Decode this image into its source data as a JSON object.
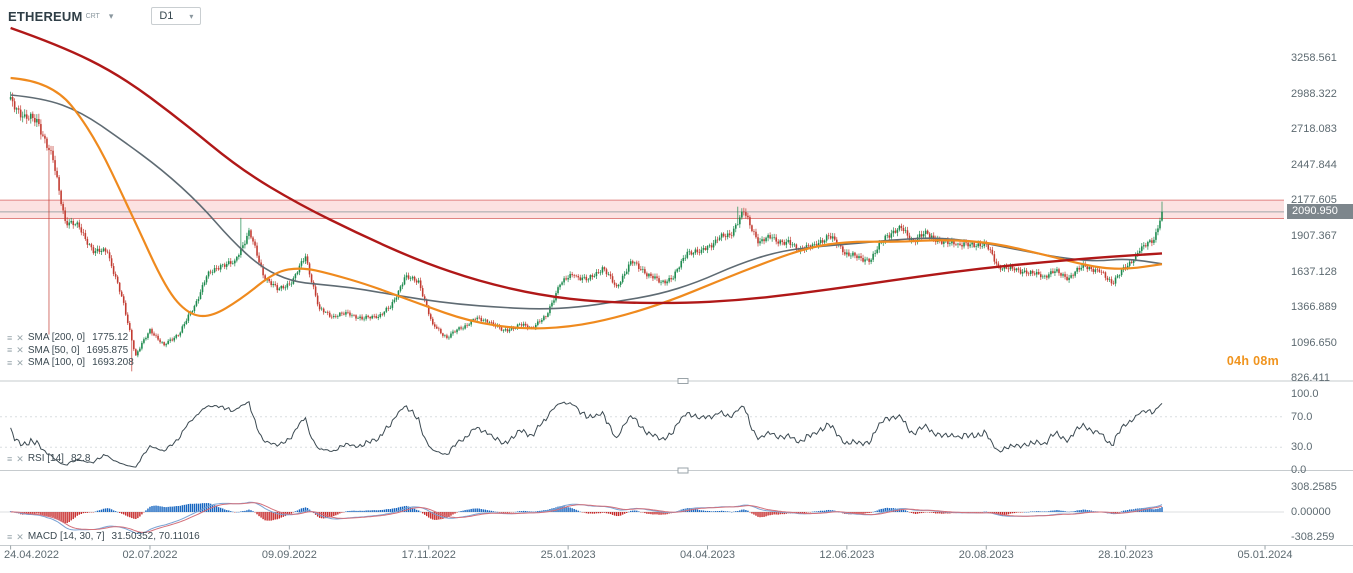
{
  "header": {
    "symbol": "ETHEREUM",
    "symbol_code": "CRT",
    "timeframe": "D1"
  },
  "current_price_label": "2090.950",
  "countdown": "04h 08m",
  "legends": {
    "sma200": {
      "label": "SMA [200, 0]",
      "value": "1775.12"
    },
    "sma50": {
      "label": "SMA [50, 0]",
      "value": "1695.875"
    },
    "sma100": {
      "label": "SMA [100, 0]",
      "value": "1693.208"
    },
    "rsi": {
      "label": "RSI [14]",
      "value": "82.8"
    },
    "macd": {
      "label": "MACD [14, 30, 7]",
      "value": "31.50352,  70.11016"
    }
  },
  "chart_data": {
    "type": "candlestick",
    "title": "ETHEREUM D1",
    "price_axis": {
      "labels": [
        "3258.561",
        "2988.322",
        "2718.083",
        "2447.844",
        "2177.605",
        "1907.367",
        "1637.128",
        "1366.889",
        "1096.650",
        "826.411"
      ],
      "top_price": 3258.561,
      "price_step": 270.239
    },
    "time_axis": [
      {
        "label": "24.04.2022",
        "day": 0
      },
      {
        "label": "02.07.2022",
        "day": 69
      },
      {
        "label": "09.09.2022",
        "day": 138
      },
      {
        "label": "17.11.2022",
        "day": 207
      },
      {
        "label": "25.01.2023",
        "day": 276
      },
      {
        "label": "04.04.2023",
        "day": 345
      },
      {
        "label": "12.06.2023",
        "day": 414
      },
      {
        "label": "20.08.2023",
        "day": 483
      },
      {
        "label": "28.10.2023",
        "day": 552
      },
      {
        "label": "05.01.2024",
        "day": 621
      }
    ],
    "current_price": 2090.95,
    "resistance_zone": {
      "price_from": 2040,
      "price_to": 2180
    },
    "series": {
      "start_date": "24.04.2022",
      "interval_days": 7,
      "first_open": 2930,
      "weekly_closes": [
        2830,
        2780,
        2520,
        2025,
        1975,
        1790,
        1805,
        1440,
        995,
        1195,
        1070,
        1165,
        1350,
        1600,
        1690,
        1700,
        1935,
        1620,
        1500,
        1560,
        1760,
        1335,
        1295,
        1320,
        1275,
        1305,
        1365,
        1590,
        1565,
        1220,
        1135,
        1215,
        1280,
        1265,
        1185,
        1220,
        1215,
        1290,
        1550,
        1628,
        1570,
        1665,
        1515,
        1700,
        1640,
        1565,
        1590,
        1795,
        1780,
        1865,
        1920,
        2090,
        1875,
        1905,
        1845,
        1805,
        1830,
        1905,
        1810,
        1745,
        1730,
        1905,
        1955,
        1870,
        1935,
        1855,
        1865,
        1835,
        1845,
        1675,
        1650,
        1635,
        1615,
        1635,
        1590,
        1680,
        1635,
        1560,
        1670,
        1805,
        1890,
        2091
      ],
      "last_week_days": 4,
      "last_close": 2090.95
    },
    "overlays": [
      {
        "name": "SMA 200",
        "color": "#b01818",
        "points": [
          [
            0,
            3486
          ],
          [
            24,
            3357
          ],
          [
            54,
            3130
          ],
          [
            84,
            2789
          ],
          [
            114,
            2411
          ],
          [
            143,
            2146
          ],
          [
            173,
            1919
          ],
          [
            203,
            1714
          ],
          [
            232,
            1563
          ],
          [
            262,
            1457
          ],
          [
            292,
            1404
          ],
          [
            331,
            1396
          ],
          [
            361,
            1419
          ],
          [
            391,
            1472
          ],
          [
            420,
            1533
          ],
          [
            450,
            1601
          ],
          [
            480,
            1661
          ],
          [
            510,
            1707
          ],
          [
            539,
            1745
          ],
          [
            570,
            1775
          ]
        ]
      },
      {
        "name": "SMA 100",
        "color": "#ef8a1e",
        "points": [
          [
            0,
            3107
          ],
          [
            20,
            3085
          ],
          [
            40,
            2713
          ],
          [
            60,
            2070
          ],
          [
            77,
            1502
          ],
          [
            88,
            1313
          ],
          [
            99,
            1290
          ],
          [
            114,
            1427
          ],
          [
            131,
            1638
          ],
          [
            144,
            1669
          ],
          [
            158,
            1623
          ],
          [
            178,
            1532
          ],
          [
            203,
            1389
          ],
          [
            227,
            1260
          ],
          [
            252,
            1200
          ],
          [
            277,
            1215
          ],
          [
            301,
            1291
          ],
          [
            326,
            1412
          ],
          [
            350,
            1563
          ],
          [
            375,
            1714
          ],
          [
            395,
            1820
          ],
          [
            414,
            1866
          ],
          [
            439,
            1862
          ],
          [
            464,
            1881
          ],
          [
            488,
            1851
          ],
          [
            513,
            1760
          ],
          [
            537,
            1669
          ],
          [
            552,
            1654
          ],
          [
            570,
            1693
          ]
        ]
      },
      {
        "name": "SMA 50",
        "color": "#5f6b73",
        "points": [
          [
            0,
            2978
          ],
          [
            16,
            2955
          ],
          [
            35,
            2849
          ],
          [
            55,
            2637
          ],
          [
            75,
            2411
          ],
          [
            94,
            2146
          ],
          [
            109,
            1881
          ],
          [
            124,
            1669
          ],
          [
            139,
            1563
          ],
          [
            153,
            1540
          ],
          [
            168,
            1517
          ],
          [
            183,
            1479
          ],
          [
            203,
            1427
          ],
          [
            222,
            1389
          ],
          [
            242,
            1366
          ],
          [
            262,
            1351
          ],
          [
            281,
            1366
          ],
          [
            301,
            1412
          ],
          [
            321,
            1465
          ],
          [
            340,
            1556
          ],
          [
            360,
            1692
          ],
          [
            380,
            1790
          ],
          [
            399,
            1828
          ],
          [
            419,
            1851
          ],
          [
            439,
            1881
          ],
          [
            458,
            1896
          ],
          [
            478,
            1866
          ],
          [
            498,
            1805
          ],
          [
            518,
            1745
          ],
          [
            537,
            1714
          ],
          [
            552,
            1737
          ],
          [
            570,
            1696
          ]
        ]
      }
    ],
    "rsi": {
      "period": 14,
      "last": 82.8,
      "axis_labels": [
        {
          "label": "100.0",
          "value": 100
        },
        {
          "label": "70.0",
          "value": 70
        },
        {
          "label": "30.0",
          "value": 30
        },
        {
          "label": "0.0",
          "value": 0
        }
      ],
      "guide_levels": [
        70,
        30
      ]
    },
    "macd": {
      "fast": 14,
      "slow": 30,
      "signal": 7,
      "last_values": [
        31.50352,
        70.11016
      ],
      "axis_labels": [
        {
          "label": "308.2585",
          "value": 308.2585
        },
        {
          "label": "0.00000",
          "value": 0
        },
        {
          "label": "-308.259",
          "value": -308.259
        }
      ]
    },
    "colors": {
      "up": "#1d8a4e",
      "down": "#c23b31",
      "rsi_line": "#3c4a52",
      "macd_line": "#7aa3d4",
      "macd_signal": "#d4707a",
      "hist_pos": "#1565c0",
      "hist_neg": "#c62828",
      "zone_fill": "rgba(236,96,94,0.18)",
      "zone_border": "rgba(205,60,58,0.6)",
      "price_line": "#a0a6aa",
      "separator": "#c6cbce"
    }
  }
}
